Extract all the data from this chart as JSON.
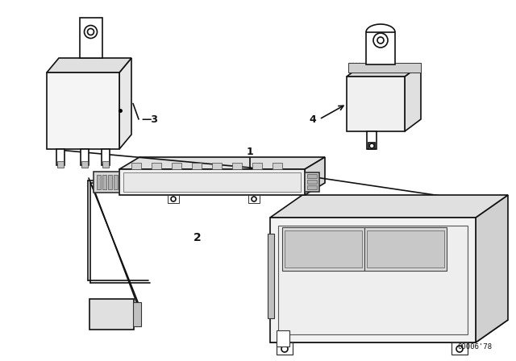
{
  "background_color": "#ffffff",
  "line_color": "#111111",
  "figure_width": 6.4,
  "figure_height": 4.48,
  "dpi": 100,
  "watermark": "00006'78",
  "part3_label": "-3",
  "part4_label": "4",
  "part1_label": "1",
  "part2_label": "2"
}
